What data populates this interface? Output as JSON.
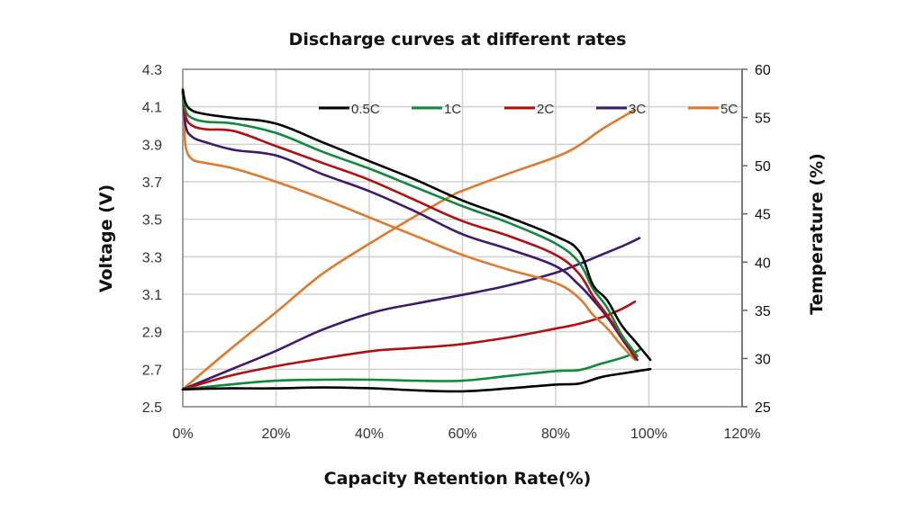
{
  "chart_data": {
    "type": "line",
    "title": "Discharge curves at different rates",
    "xlabel": "Capacity Retention Rate(%)",
    "ylabel": "Voltage (V)",
    "y2label": "Temperature (%)",
    "xlim": [
      0,
      120
    ],
    "ylim": [
      2.5,
      4.3
    ],
    "y2lim": [
      25,
      60
    ],
    "x_ticks": [
      "0%",
      "20%",
      "40%",
      "60%",
      "80%",
      "100%",
      "120%"
    ],
    "x_tick_values": [
      0,
      20,
      40,
      60,
      80,
      100,
      120
    ],
    "y_ticks": [
      "4.3",
      "4.1",
      "3.9",
      "3.7",
      "3.5",
      "3.3",
      "3.1",
      "2.9",
      "2.7",
      "2.5"
    ],
    "y_tick_values": [
      4.3,
      4.1,
      3.9,
      3.7,
      3.5,
      3.3,
      3.1,
      2.9,
      2.7,
      2.5
    ],
    "y2_ticks": [
      "60",
      "55",
      "50",
      "45",
      "40",
      "35",
      "30",
      "25"
    ],
    "y2_tick_values": [
      60,
      55,
      50,
      45,
      40,
      35,
      30,
      25
    ],
    "grid": true,
    "legend_position": "top-center-inside",
    "series": [
      {
        "name": "0.5C",
        "color": "#000000",
        "voltage": {
          "x": [
            0,
            0.6,
            2,
            5,
            11,
            20,
            30,
            40,
            50,
            60,
            70,
            80,
            85,
            88,
            91,
            94,
            97,
            99,
            100.3
          ],
          "y": [
            4.19,
            4.12,
            4.08,
            4.06,
            4.04,
            4.01,
            3.91,
            3.81,
            3.71,
            3.6,
            3.51,
            3.41,
            3.33,
            3.15,
            3.07,
            2.94,
            2.85,
            2.79,
            2.75
          ]
        },
        "temperature": {
          "x": [
            0,
            10,
            20,
            30,
            41,
            50,
            60,
            70,
            80,
            85,
            90,
            95,
            100.3
          ],
          "y": [
            26.8,
            26.9,
            26.9,
            27.0,
            26.9,
            26.7,
            26.6,
            26.9,
            27.3,
            27.4,
            28.1,
            28.5,
            28.9
          ]
        }
      },
      {
        "name": "1C",
        "color": "#0e8a3c",
        "voltage": {
          "x": [
            0,
            0.6,
            2,
            5,
            11,
            20,
            30,
            40,
            50,
            60,
            70,
            80,
            85,
            88,
            91,
            94,
            96,
            97.5
          ],
          "y": [
            4.18,
            4.08,
            4.04,
            4.02,
            4.01,
            3.96,
            3.86,
            3.77,
            3.67,
            3.57,
            3.48,
            3.37,
            3.27,
            3.13,
            3.03,
            2.89,
            2.82,
            2.77
          ]
        },
        "temperature": {
          "x": [
            0,
            10,
            20,
            30,
            41,
            50,
            60,
            70,
            80,
            85,
            90,
            95,
            98
          ],
          "y": [
            26.8,
            27.3,
            27.7,
            27.8,
            27.8,
            27.7,
            27.7,
            28.2,
            28.7,
            28.8,
            29.5,
            30.2,
            30.9
          ]
        }
      },
      {
        "name": "2C",
        "color": "#b01010",
        "voltage": {
          "x": [
            0,
            0.6,
            2,
            5,
            11,
            20,
            30,
            40,
            50,
            60,
            70,
            80,
            85,
            88,
            91,
            94,
            96,
            97
          ],
          "y": [
            4.18,
            4.05,
            4.0,
            3.98,
            3.97,
            3.89,
            3.8,
            3.71,
            3.6,
            3.49,
            3.41,
            3.31,
            3.21,
            3.09,
            2.99,
            2.88,
            2.81,
            2.76
          ]
        },
        "temperature": {
          "x": [
            0,
            10,
            20,
            30,
            41,
            50,
            60,
            70,
            80,
            85,
            90,
            94,
            97
          ],
          "y": [
            26.8,
            28.2,
            29.2,
            30.0,
            30.8,
            31.1,
            31.5,
            32.2,
            33.1,
            33.6,
            34.3,
            35.1,
            35.9
          ]
        }
      },
      {
        "name": "3C",
        "color": "#3d1a6e",
        "voltage": {
          "x": [
            0,
            0.6,
            2,
            5,
            11,
            20,
            30,
            40,
            50,
            60,
            70,
            80,
            85,
            88,
            91,
            94,
            96,
            97.5
          ],
          "y": [
            4.18,
            4.0,
            3.94,
            3.91,
            3.87,
            3.84,
            3.74,
            3.65,
            3.54,
            3.42,
            3.34,
            3.25,
            3.15,
            3.07,
            2.98,
            2.87,
            2.8,
            2.75
          ]
        },
        "temperature": {
          "x": [
            0,
            10,
            20,
            30,
            41,
            50,
            60,
            70,
            80,
            85,
            90,
            95,
            98
          ],
          "y": [
            26.8,
            28.8,
            30.8,
            33.0,
            34.8,
            35.7,
            36.6,
            37.6,
            38.9,
            39.8,
            40.8,
            41.8,
            42.5
          ]
        }
      },
      {
        "name": "5C",
        "color": "#e07a2a",
        "voltage": {
          "x": [
            0,
            0.3,
            0.6,
            2,
            5,
            11,
            20,
            30,
            40,
            50,
            60,
            70,
            80,
            85,
            88,
            91,
            94,
            97
          ],
          "y": [
            4.2,
            4.05,
            3.89,
            3.82,
            3.8,
            3.77,
            3.7,
            3.61,
            3.51,
            3.41,
            3.31,
            3.23,
            3.16,
            3.08,
            2.99,
            2.92,
            2.83,
            2.75
          ]
        },
        "temperature": {
          "x": [
            0,
            10,
            20,
            30,
            40,
            50,
            57.4,
            60,
            70,
            80,
            85,
            90,
            97
          ],
          "y": [
            26.8,
            30.9,
            34.8,
            38.8,
            41.9,
            44.8,
            46.8,
            47.4,
            49.2,
            50.9,
            52.1,
            53.8,
            55.8
          ]
        }
      }
    ]
  }
}
